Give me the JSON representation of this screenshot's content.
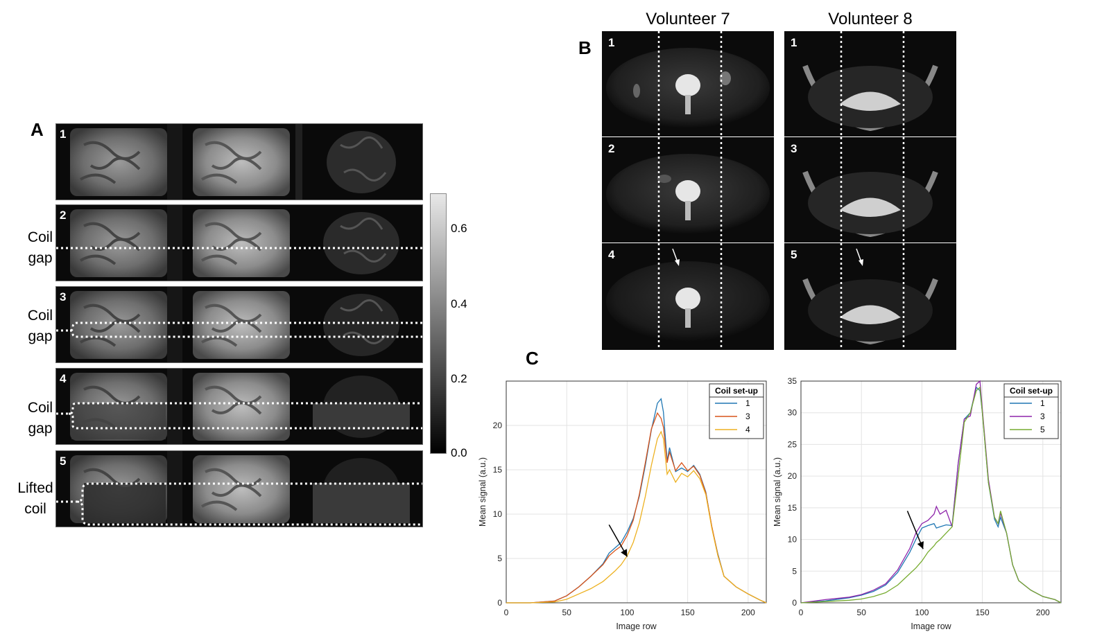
{
  "panels": {
    "a": "A",
    "b": "B",
    "c": "C"
  },
  "panel_a": {
    "rows": [
      "1",
      "2",
      "3",
      "4",
      "5"
    ],
    "labels": {
      "coil_gap_2_line1": "Coil",
      "coil_gap_2_line2": "gap",
      "coil_gap_3_line1": "Coil",
      "coil_gap_3_line2": "gap",
      "coil_gap_4_line1": "Coil",
      "coil_gap_4_line2": "gap",
      "lifted_line1": "Lifted",
      "lifted_line2": "coil"
    },
    "colorbar": {
      "ticks": [
        "0.6",
        "0.4",
        "0.2",
        "0.0"
      ],
      "min": 0,
      "max": 0.7
    }
  },
  "panel_b": {
    "volunteer7": {
      "title": "Volunteer 7",
      "rows": [
        "1",
        "2",
        "4"
      ]
    },
    "volunteer8": {
      "title": "Volunteer 8",
      "rows": [
        "1",
        "3",
        "5"
      ]
    }
  },
  "chart_data": [
    {
      "type": "line",
      "xlabel": "Image row",
      "ylabel": "Mean signal (a.u.)",
      "xlim": [
        0,
        215
      ],
      "ylim": [
        0,
        25
      ],
      "xticks": [
        "0",
        "50",
        "100",
        "150",
        "200"
      ],
      "yticks": [
        "0",
        "5",
        "10",
        "15",
        "20"
      ],
      "legend_title": "Coil set-up",
      "legend_position": "top-right",
      "annotation": "arrow pointing to curve near row 100",
      "x": [
        0,
        20,
        40,
        50,
        60,
        70,
        80,
        85,
        90,
        95,
        100,
        105,
        110,
        115,
        120,
        125,
        128,
        130,
        133,
        135,
        140,
        145,
        150,
        155,
        160,
        165,
        170,
        175,
        180,
        190,
        200,
        210,
        215
      ],
      "series": [
        {
          "name": "1",
          "color": "#1f77b4",
          "values": [
            0,
            0,
            0.2,
            0.8,
            1.8,
            3,
            4.4,
            5.6,
            6.2,
            6.8,
            8,
            9.5,
            12,
            15.5,
            19.5,
            22.5,
            23,
            21.5,
            16,
            17.5,
            14.8,
            15.2,
            14.8,
            15.5,
            14.5,
            12.5,
            8.5,
            5.5,
            3,
            1.8,
            1,
            0.3,
            0
          ]
        },
        {
          "name": "3",
          "color": "#d95319",
          "values": [
            0,
            0,
            0.2,
            0.8,
            1.8,
            3,
            4.3,
            5.3,
            5.9,
            6.4,
            7.6,
            9.3,
            12.2,
            15.8,
            19.6,
            21.4,
            20.8,
            19.8,
            15.8,
            17,
            14.9,
            15.8,
            14.9,
            15.4,
            14.4,
            12.4,
            8.6,
            5.4,
            3,
            1.8,
            1,
            0.3,
            0
          ]
        },
        {
          "name": "4",
          "color": "#edb120",
          "values": [
            0,
            0,
            0.1,
            0.4,
            1,
            1.6,
            2.4,
            3,
            3.6,
            4.3,
            5.3,
            6.8,
            9,
            12,
            15.5,
            18.5,
            19.3,
            18.5,
            14.5,
            15,
            13.6,
            14.6,
            14.2,
            14.9,
            14,
            12.2,
            8.4,
            5.3,
            3,
            1.8,
            1,
            0.3,
            0
          ]
        }
      ]
    },
    {
      "type": "line",
      "xlabel": "Image row",
      "ylabel": "Mean signal (a.u.)",
      "xlim": [
        0,
        215
      ],
      "ylim": [
        0,
        35
      ],
      "xticks": [
        "0",
        "50",
        "100",
        "150",
        "200"
      ],
      "yticks": [
        "0",
        "5",
        "10",
        "15",
        "20",
        "25",
        "30",
        "35"
      ],
      "legend_title": "Coil set-up",
      "legend_position": "top-right",
      "annotation": "arrow pointing to curve near row 100",
      "x": [
        0,
        20,
        40,
        50,
        60,
        70,
        80,
        90,
        95,
        100,
        105,
        110,
        112,
        115,
        120,
        125,
        130,
        135,
        140,
        145,
        148,
        150,
        155,
        160,
        163,
        165,
        170,
        175,
        180,
        190,
        200,
        210,
        215
      ],
      "series": [
        {
          "name": "1",
          "color": "#1f77b4",
          "values": [
            0,
            0.3,
            0.8,
            1.2,
            1.8,
            2.8,
            4.8,
            8,
            10,
            11.8,
            12.2,
            12.5,
            11.8,
            12,
            12.3,
            12.2,
            22,
            29,
            30,
            34,
            33.5,
            30,
            19,
            13.2,
            12,
            13.5,
            11,
            6,
            3.5,
            2,
            1,
            0.5,
            0
          ]
        },
        {
          "name": "3",
          "color": "#8e24aa",
          "values": [
            0,
            0.5,
            0.9,
            1.3,
            2,
            3,
            5.2,
            8.6,
            11,
            12.5,
            13,
            14,
            15.2,
            14,
            14.6,
            12,
            22,
            29,
            29.5,
            34.5,
            35,
            30.5,
            19.5,
            13.5,
            12.5,
            14.2,
            11,
            6,
            3.5,
            2,
            1,
            0.5,
            0
          ]
        },
        {
          "name": "5",
          "color": "#77ac30",
          "values": [
            0,
            0.2,
            0.4,
            0.6,
            1,
            1.6,
            2.8,
            4.6,
            5.5,
            6.6,
            8,
            9,
            9.5,
            10,
            11,
            12,
            20,
            28.5,
            30,
            33.5,
            34,
            30,
            19,
            13.5,
            12.5,
            14.5,
            11,
            6,
            3.5,
            2,
            1,
            0.5,
            0
          ]
        }
      ]
    }
  ]
}
